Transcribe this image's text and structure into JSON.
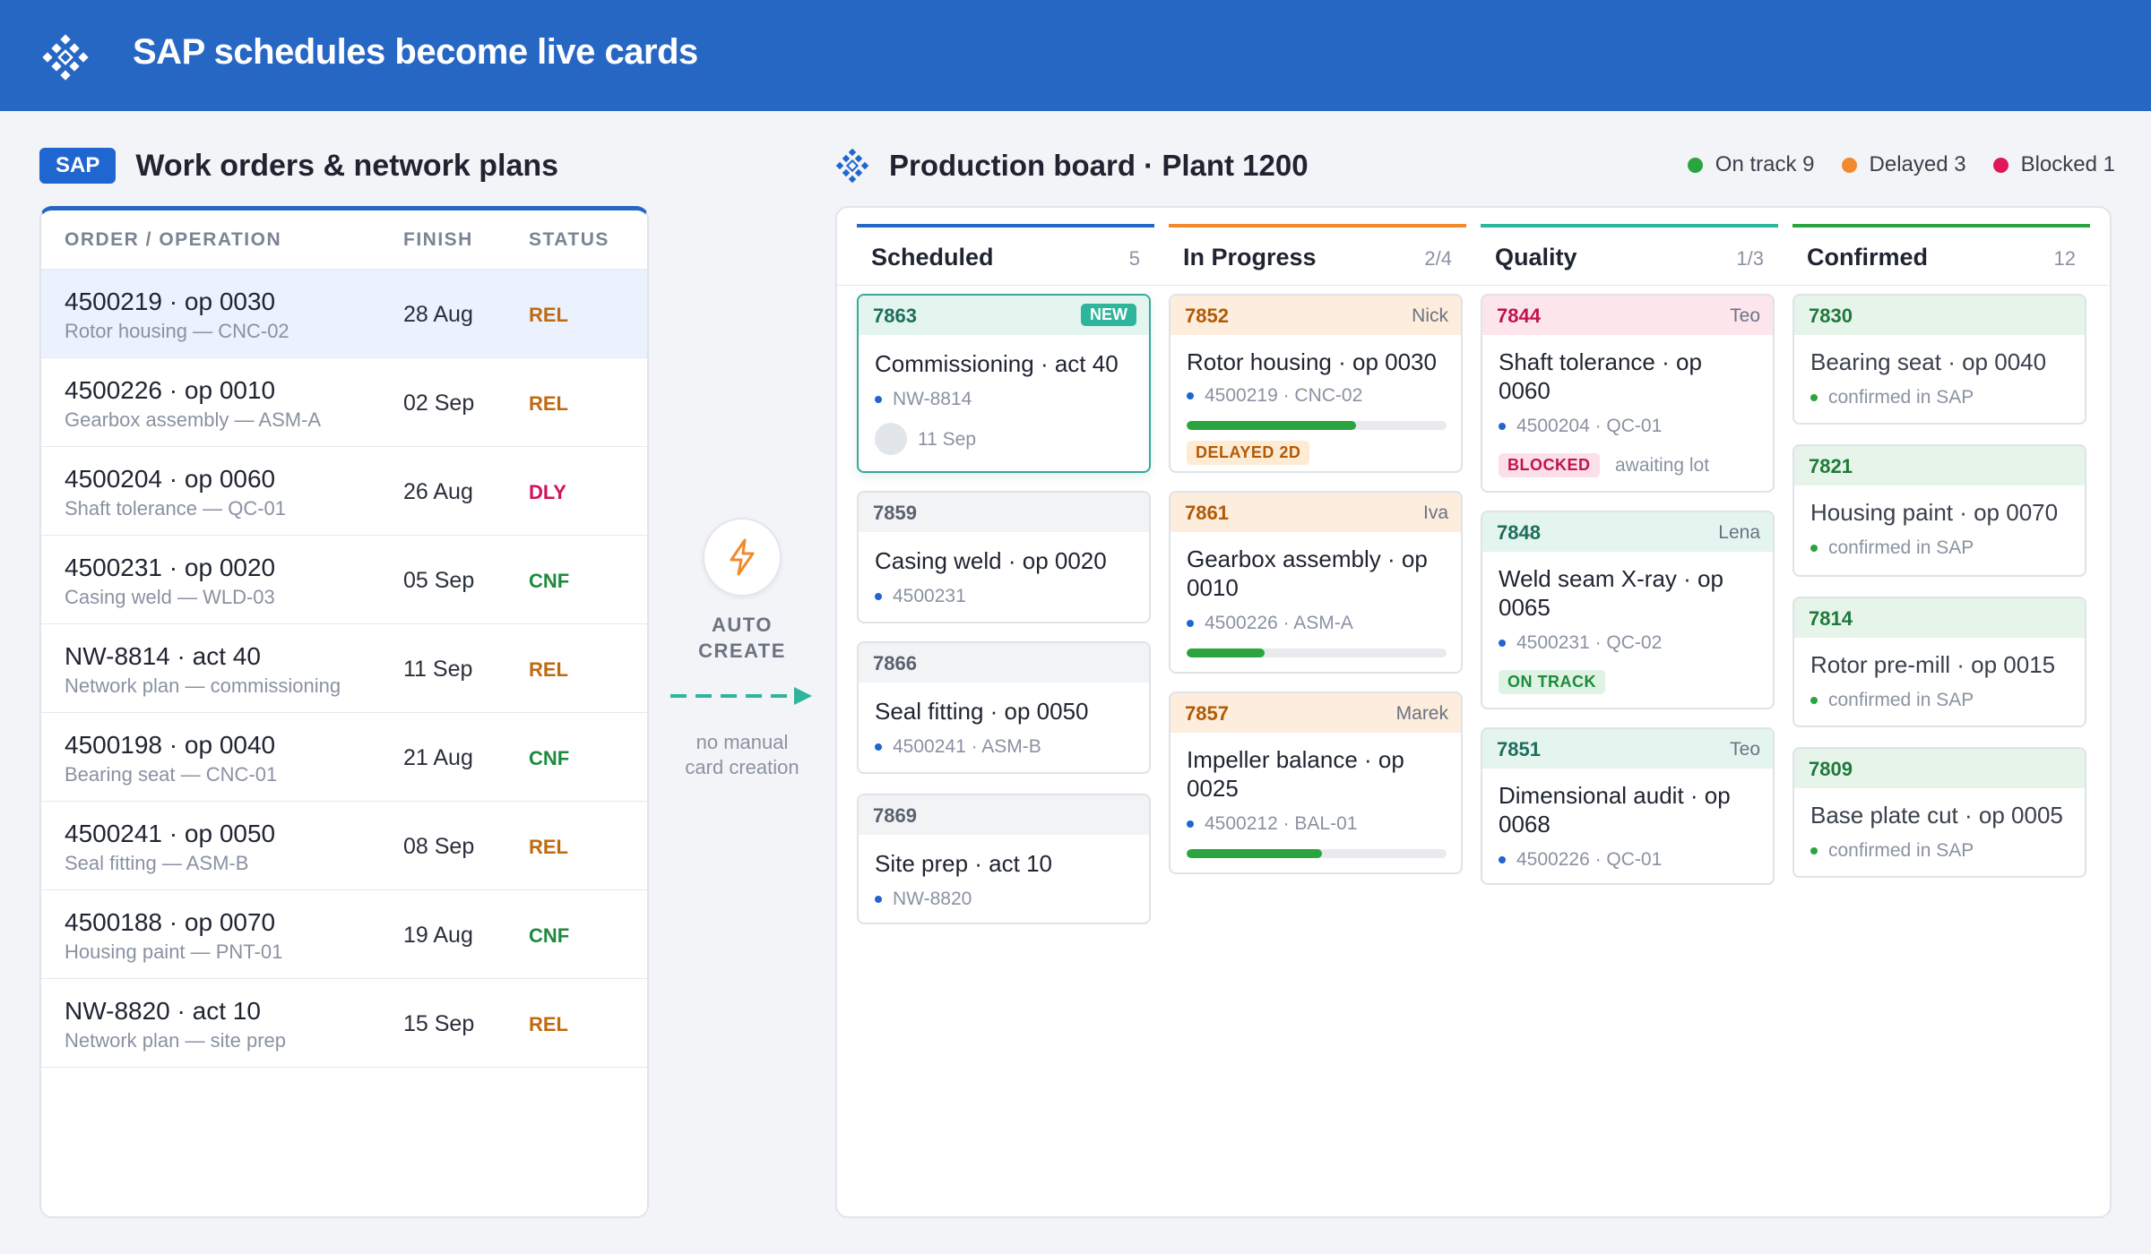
{
  "header": {
    "title": "SAP schedules become live cards"
  },
  "sap": {
    "badge": "SAP",
    "title": "Work orders & network plans",
    "columns": [
      "ORDER / OPERATION",
      "FINISH",
      "STATUS"
    ],
    "rows": [
      {
        "op": "4500219 · op 0030",
        "sub": "Rotor housing — CNC-02",
        "finish": "28 Aug",
        "status": "REL"
      },
      {
        "op": "4500226 · op 0010",
        "sub": "Gearbox assembly — ASM-A",
        "finish": "02 Sep",
        "status": "REL"
      },
      {
        "op": "4500204 · op 0060",
        "sub": "Shaft tolerance — QC-01",
        "finish": "26 Aug",
        "status": "DLY"
      },
      {
        "op": "4500231 · op 0020",
        "sub": "Casing weld — WLD-03",
        "finish": "05 Sep",
        "status": "CNF"
      },
      {
        "op": "NW-8814 · act 40",
        "sub": "Network plan — commissioning",
        "finish": "11 Sep",
        "status": "REL"
      },
      {
        "op": "4500198 · op 0040",
        "sub": "Bearing seat — CNC-01",
        "finish": "21 Aug",
        "status": "CNF"
      },
      {
        "op": "4500241 · op 0050",
        "sub": "Seal fitting — ASM-B",
        "finish": "08 Sep",
        "status": "REL"
      },
      {
        "op": "4500188 · op 0070",
        "sub": "Housing paint — PNT-01",
        "finish": "19 Aug",
        "status": "CNF"
      },
      {
        "op": "NW-8820 · act 10",
        "sub": "Network plan — site prep",
        "finish": "15 Sep",
        "status": "REL"
      }
    ]
  },
  "auto": {
    "label1": "AUTO",
    "label2": "CREATE",
    "note1": "no manual",
    "note2": "card creation",
    "icon": "bolt-icon"
  },
  "board": {
    "title": "Production board · Plant 1200",
    "legend": [
      {
        "label": "On track 9",
        "color": "#2aa43e"
      },
      {
        "label": "Delayed 3",
        "color": "#f08a2c"
      },
      {
        "label": "Blocked 1",
        "color": "#e0185a"
      }
    ],
    "columns": [
      {
        "name": "Scheduled",
        "count": "5",
        "color": "#2767c4"
      },
      {
        "name": "In Progress",
        "count": "2/4",
        "color": "#f08a2c"
      },
      {
        "name": "Quality",
        "count": "1/3",
        "color": "#2fb59b"
      },
      {
        "name": "Confirmed",
        "count": "12",
        "color": "#2aa43e"
      }
    ],
    "cards": {
      "c7863": {
        "id": "7863",
        "tag": "NEW",
        "title": "Commissioning · act 40",
        "meta": "NW-8814",
        "date": "11 Sep"
      },
      "c7859": {
        "id": "7859",
        "title": "Casing weld · op 0020",
        "meta": "4500231"
      },
      "c7866": {
        "id": "7866",
        "title": "Seal fitting · op 0050",
        "meta": "4500241 · ASM-B"
      },
      "c7869": {
        "id": "7869",
        "title": "Site prep · act 10",
        "meta": "NW-8820"
      },
      "c7852": {
        "id": "7852",
        "who": "Nick",
        "title": "Rotor housing · op 0030",
        "meta": "4500219 · CNC-02",
        "progress": 0.65,
        "tag": "DELAYED 2D"
      },
      "c7861": {
        "id": "7861",
        "who": "Iva",
        "title1": "Gearbox assembly · op",
        "title2": "0010",
        "meta": "4500226 · ASM-A",
        "progress": 0.3
      },
      "c7857": {
        "id": "7857",
        "who": "Marek",
        "title1": "Impeller balance · op",
        "title2": "0025",
        "meta": "4500212 · BAL-01",
        "progress": 0.52
      },
      "c7844": {
        "id": "7844",
        "who": "Teo",
        "title1": "Shaft tolerance · op",
        "title2": "0060",
        "meta": "4500204 · QC-01",
        "tag": "BLOCKED",
        "note": "awaiting lot"
      },
      "c7848": {
        "id": "7848",
        "who": "Lena",
        "title1": "Weld seam X-ray · op",
        "title2": "0065",
        "meta": "4500231 · QC-02",
        "tag": "ON TRACK"
      },
      "c7851": {
        "id": "7851",
        "who": "Teo",
        "title1": "Dimensional audit · op",
        "title2": "0068",
        "meta": "4500226 · QC-01"
      },
      "c7830": {
        "id": "7830",
        "title": "Bearing seat · op 0040",
        "meta": "confirmed in SAP"
      },
      "c7821": {
        "id": "7821",
        "title": "Housing paint · op 0070",
        "meta": "confirmed in SAP"
      },
      "c7814": {
        "id": "7814",
        "title": "Rotor pre-mill · op 0015",
        "meta": "confirmed in SAP"
      },
      "c7809": {
        "id": "7809",
        "title": "Base plate cut · op 0005",
        "meta": "confirmed in SAP"
      }
    }
  }
}
